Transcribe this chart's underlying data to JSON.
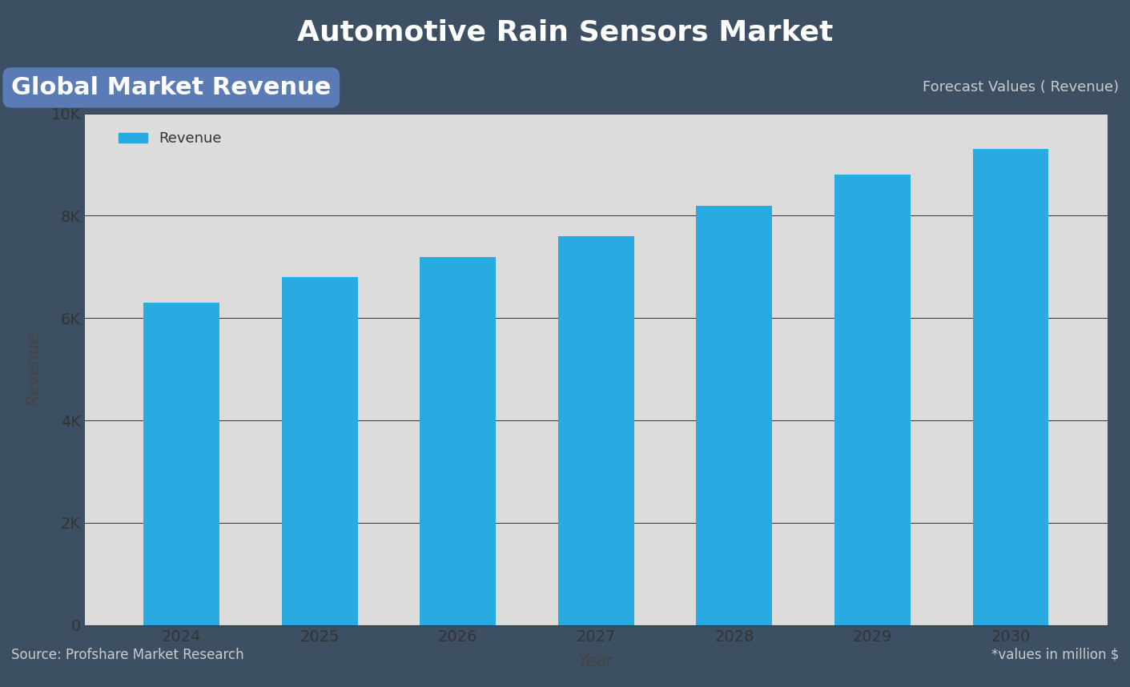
{
  "title": "Automotive Rain Sensors Market",
  "subtitle_left": "Global Market Revenue",
  "subtitle_right": "Forecast Values ( Revenue)",
  "footer_left": "Source: Profshare Market Research",
  "footer_right": "*values in million $",
  "xlabel": "Year",
  "ylabel": "Revenue",
  "legend_label": "Revenue",
  "years": [
    2024,
    2025,
    2026,
    2027,
    2028,
    2029,
    2030
  ],
  "values": [
    6300,
    6800,
    7200,
    7600,
    8200,
    8800,
    9300
  ],
  "bar_color": "#29ABE2",
  "background_outer": "#3D4F63",
  "background_plot": "#DCDCDC",
  "title_color": "#FFFFFF",
  "subtitle_left_bg": "#5A7BB5",
  "subtitle_left_color": "#FFFFFF",
  "subtitle_right_color": "#CCCCCC",
  "footer_color": "#CCCCCC",
  "tick_label_color": "#333333",
  "axis_label_color": "#444444",
  "grid_color": "#333333",
  "ylim": [
    0,
    10000
  ],
  "yticks": [
    0,
    2000,
    4000,
    6000,
    8000,
    10000
  ],
  "ytick_labels": [
    "0",
    "2K",
    "4K",
    "6K",
    "8K",
    "10K"
  ]
}
